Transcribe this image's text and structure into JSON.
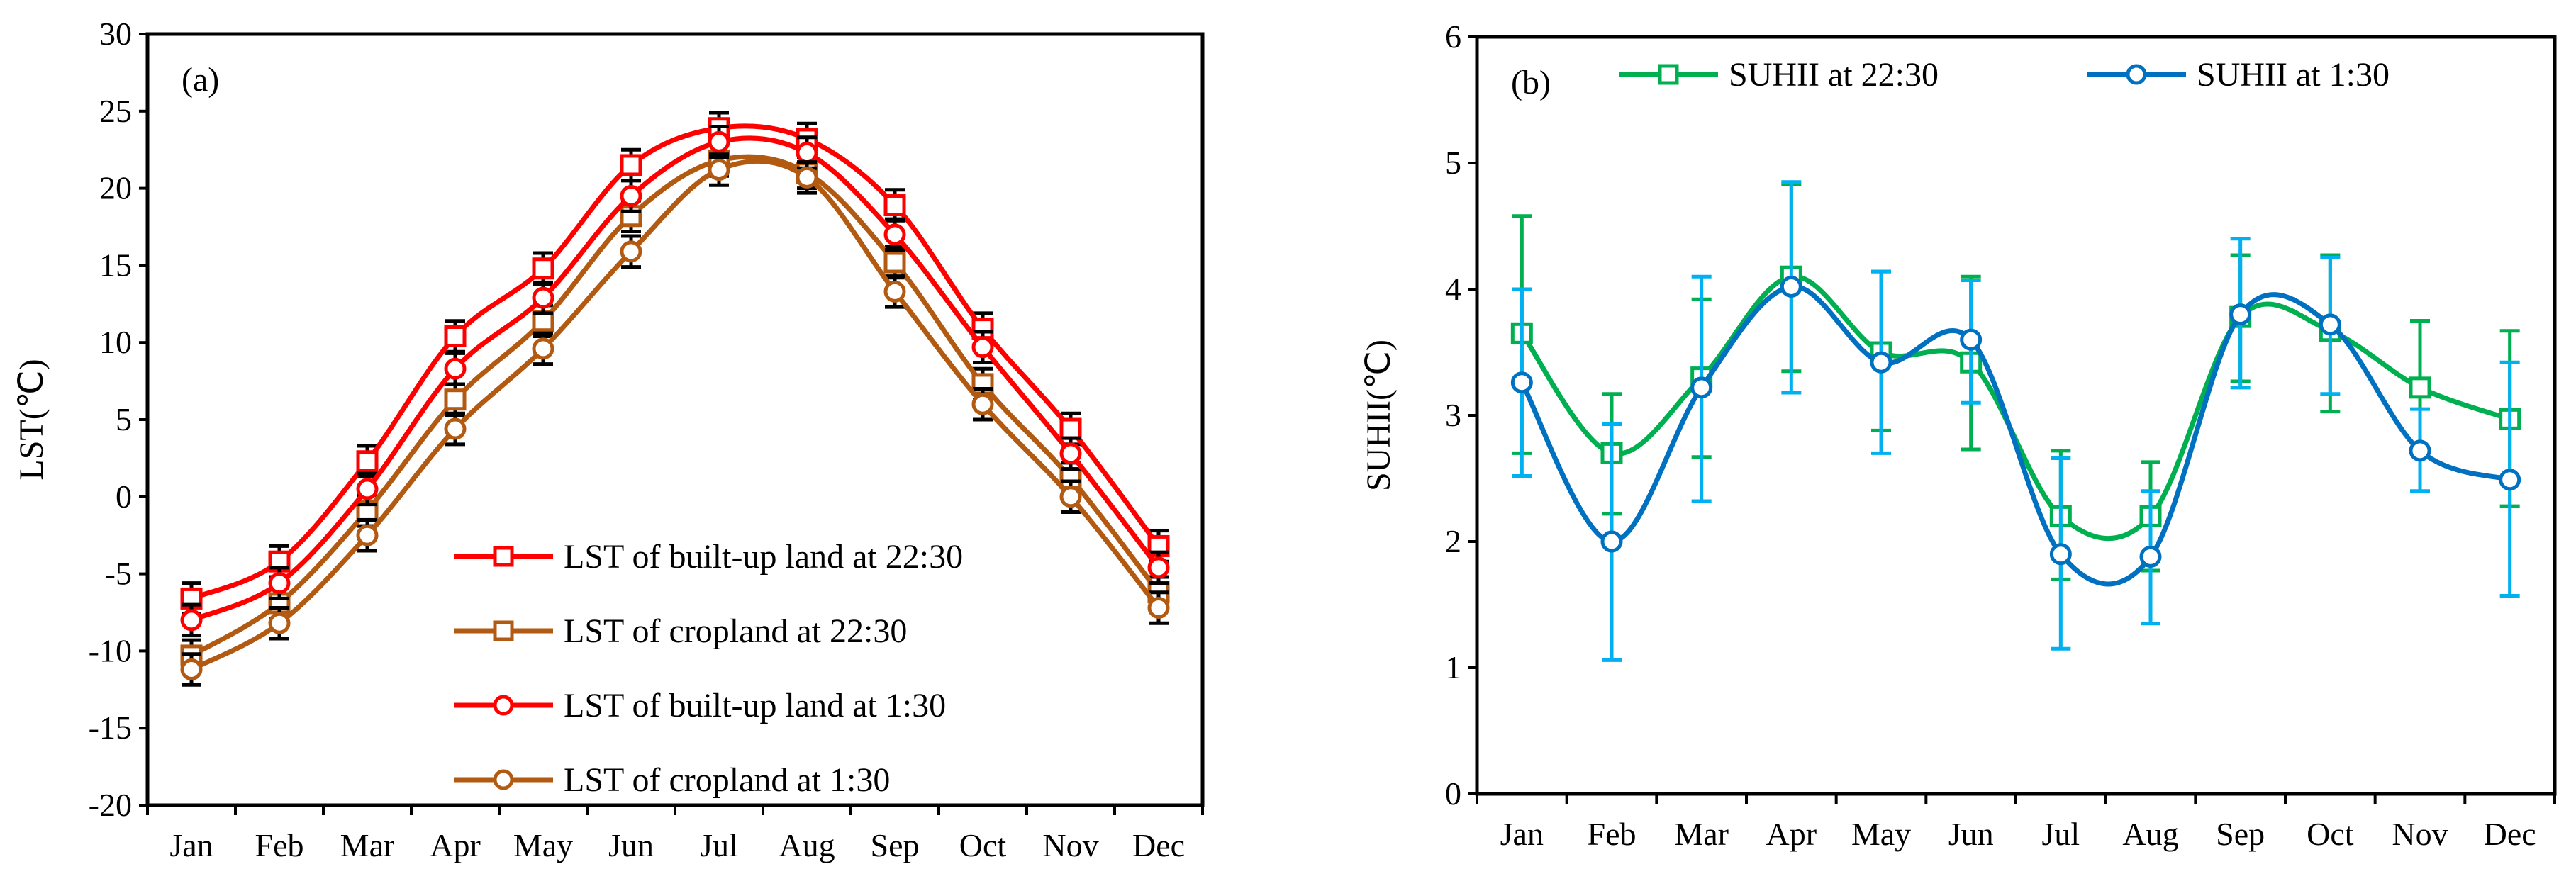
{
  "chart_data": [
    {
      "type": "line",
      "panel_label": "(a)",
      "title": "",
      "xlabel": "",
      "ylabel": "LST(℃)",
      "ylim": [
        -20,
        30
      ],
      "yticks": [
        "-20",
        "-15",
        "-10",
        "-5",
        "0",
        "5",
        "10",
        "15",
        "20",
        "25",
        "30"
      ],
      "categories": [
        "Jan",
        "Feb",
        "Mar",
        "Apr",
        "May",
        "Jun",
        "Jul",
        "Aug",
        "Sep",
        "Oct",
        "Nov",
        "Dec"
      ],
      "legend_position": "bottom-center",
      "series": [
        {
          "name": "LST of built-up land at 22:30",
          "marker": "square",
          "color": "#ff0000",
          "values": [
            -6.6,
            -4.2,
            2.3,
            10.4,
            14.8,
            21.5,
            23.9,
            23.2,
            18.9,
            10.9,
            4.4,
            -3.2
          ],
          "error": 1.0
        },
        {
          "name": "LST of cropland at 22:30",
          "marker": "square",
          "color": "#b35a12",
          "values": [
            -10.3,
            -6.9,
            -0.9,
            6.3,
            11.4,
            18.2,
            21.8,
            21.0,
            15.2,
            7.3,
            1.2,
            -6.2
          ],
          "error": 1.0
        },
        {
          "name": "LST of built-up land at 1:30",
          "marker": "circle",
          "color": "#ff0000",
          "values": [
            -8.0,
            -5.6,
            0.5,
            8.3,
            12.9,
            19.5,
            23.0,
            22.3,
            17.0,
            9.7,
            2.8,
            -4.6
          ],
          "error": 1.0
        },
        {
          "name": "LST of cropland at 1:30",
          "marker": "circle",
          "color": "#b35a12",
          "values": [
            -11.2,
            -8.2,
            -2.5,
            4.4,
            9.6,
            15.9,
            21.2,
            20.7,
            13.3,
            6.0,
            0.0,
            -7.2
          ],
          "error": 1.0
        }
      ]
    },
    {
      "type": "line",
      "panel_label": "(b)",
      "title": "",
      "xlabel": "",
      "ylabel": "SUHII(℃)",
      "ylim": [
        0,
        6
      ],
      "yticks": [
        "0",
        "1",
        "2",
        "3",
        "4",
        "5",
        "6"
      ],
      "categories": [
        "Jan",
        "Feb",
        "Mar",
        "Apr",
        "May",
        "Jun",
        "Jul",
        "Aug",
        "Sep",
        "Oct",
        "Nov",
        "Dec"
      ],
      "legend_position": "top",
      "series": [
        {
          "name": "SUHII at 22:30",
          "marker": "square",
          "color": "#00b050",
          "errcolor": "#00b050",
          "values": [
            3.65,
            2.7,
            3.3,
            4.1,
            3.5,
            3.42,
            2.2,
            2.2,
            3.78,
            3.67,
            3.22,
            2.97
          ],
          "low": [
            2.7,
            2.22,
            2.67,
            3.35,
            2.88,
            2.73,
            1.7,
            1.77,
            3.27,
            3.03,
            2.7,
            2.28
          ],
          "high": [
            4.58,
            3.17,
            3.92,
            4.83,
            4.14,
            4.1,
            2.72,
            2.63,
            4.27,
            4.27,
            3.75,
            3.67
          ]
        },
        {
          "name": "SUHII at 1:30",
          "marker": "circle",
          "color": "#0070c0",
          "errcolor": "#00b0f0",
          "values": [
            3.26,
            2.0,
            3.22,
            4.02,
            3.42,
            3.6,
            1.9,
            1.88,
            3.8,
            3.72,
            2.72,
            2.49
          ],
          "low": [
            2.52,
            1.06,
            2.32,
            3.18,
            2.7,
            3.1,
            1.15,
            1.35,
            3.22,
            3.17,
            2.4,
            1.57
          ],
          "high": [
            4.0,
            2.93,
            4.1,
            4.85,
            4.14,
            4.07,
            2.66,
            2.4,
            4.4,
            4.25,
            3.05,
            3.42
          ]
        }
      ]
    }
  ]
}
